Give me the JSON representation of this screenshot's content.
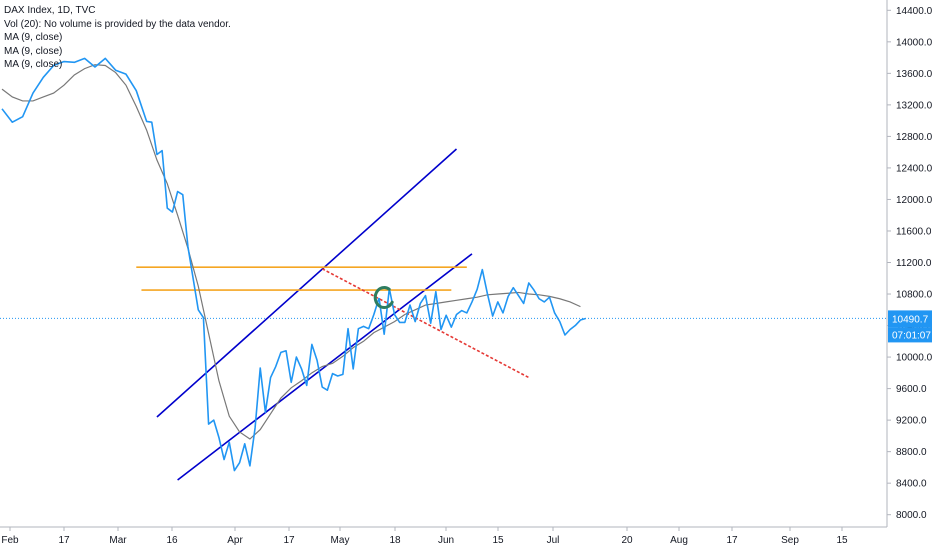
{
  "legend": {
    "title": "DAX Index, 1D, TVC",
    "volume": "Vol (20): No volume is provided by the data vendor.",
    "ma1": "MA (9, close)",
    "ma2": "MA (9, close)",
    "ma3": "MA (9, close)"
  },
  "price_label": {
    "price": "10490.7",
    "countdown": "07:01:07"
  },
  "colors": {
    "price_line": "#2196f3",
    "ma_line": "#787878",
    "channel_line": "#0000cc",
    "resistance_line": "#f5a623",
    "down_line": "#e53935",
    "marker": "#2e7d60",
    "price_label_bg": "#2196f3"
  },
  "chart_data": {
    "type": "line",
    "title": "DAX Index, 1D, TVC",
    "x_axis_ticks": [
      "Feb",
      "17",
      "Mar",
      "16",
      "Apr",
      "17",
      "May",
      "18",
      "Jun",
      "15",
      "Jul",
      "20",
      "Aug",
      "17",
      "Sep",
      "15"
    ],
    "y_axis_ticks": [
      14400,
      14000,
      13600,
      13200,
      12800,
      12400,
      12000,
      11600,
      11200,
      10800,
      10400,
      10000,
      9600,
      9200,
      8800,
      8400,
      8000
    ],
    "ylim": [
      7920,
      14480
    ],
    "x_range": [
      0,
      170
    ],
    "current_price": 10490.7,
    "grid": false,
    "series": [
      {
        "kind": "price",
        "x": [
          0,
          2,
          4,
          6,
          8,
          10,
          12,
          14,
          16,
          18,
          20,
          22,
          24,
          26,
          28,
          29,
          30,
          31,
          32,
          33,
          34,
          35,
          36,
          37,
          38,
          39,
          40,
          41,
          42,
          43,
          44,
          45,
          46,
          47,
          48,
          49,
          50,
          51,
          52,
          53,
          54,
          55,
          56,
          57,
          58,
          59,
          60,
          61,
          62,
          63,
          64,
          65,
          66,
          67,
          68,
          69,
          70,
          71,
          72,
          73
        ],
        "y": [
          13150,
          12980,
          13050,
          13350,
          13550,
          13700,
          13750,
          13740,
          13790,
          13680,
          13790,
          13640,
          13590,
          13380,
          12990,
          12980,
          12570,
          12620,
          11890,
          11840,
          12100,
          12060,
          11400,
          11000,
          10600,
          10500,
          9150,
          9200,
          8980,
          8700,
          8920,
          8560,
          8660,
          8900,
          8620,
          9100,
          9860,
          9300,
          9740,
          9880,
          10060,
          10080,
          9680,
          10000,
          9850,
          9640,
          10160,
          9960,
          9620,
          9580,
          9790,
          9760,
          9780,
          10360,
          9850,
          10360,
          10390,
          10360,
          10540,
          10750
        ]
      },
      {
        "kind": "price-continued",
        "x": [
          73,
          74,
          75,
          76,
          77,
          78,
          79,
          80,
          81,
          82,
          83,
          84,
          85,
          86,
          87,
          88,
          89,
          90,
          91,
          92,
          93,
          94
        ],
        "y": [
          10750,
          10290,
          10870,
          10540,
          10440,
          10440,
          10660,
          10450,
          10680,
          10780,
          10430,
          10830,
          10350,
          10530,
          10380,
          10540,
          10590,
          10560,
          10700,
          10860,
          11110,
          10800
        ],
        "note": "continuation segment"
      },
      {
        "kind": "price-late",
        "x": [
          94,
          95,
          96,
          97,
          98,
          99,
          100,
          101,
          102,
          103,
          104,
          105,
          106,
          107,
          108,
          109,
          110,
          111,
          112,
          113
        ],
        "y": [
          10800,
          10520,
          10700,
          10560,
          10770,
          10880,
          10780,
          10680,
          10940,
          10850,
          10740,
          10700,
          10760,
          10560,
          10450,
          10280,
          10350,
          10400,
          10470,
          10490
        ],
        "note": "late segment"
      }
    ],
    "moving_average": {
      "name": "MA (9, close)",
      "x": [
        0,
        2,
        4,
        6,
        8,
        10,
        12,
        14,
        16,
        18,
        20,
        22,
        24,
        26,
        28,
        30,
        32,
        34,
        36,
        38,
        40,
        42,
        44,
        46,
        48,
        50,
        52,
        54,
        56,
        58,
        60,
        62,
        64,
        66,
        68,
        70,
        72,
        74,
        76,
        78,
        80,
        82,
        84,
        86,
        88,
        90,
        92,
        94,
        96,
        98,
        100,
        102,
        104,
        106,
        108,
        110,
        112
      ],
      "y": [
        13400,
        13300,
        13250,
        13250,
        13300,
        13350,
        13450,
        13580,
        13660,
        13710,
        13700,
        13610,
        13450,
        13180,
        12880,
        12500,
        12200,
        11800,
        11380,
        10900,
        10300,
        9700,
        9250,
        9050,
        8960,
        9080,
        9280,
        9480,
        9610,
        9700,
        9800,
        9880,
        9920,
        10010,
        10120,
        10200,
        10310,
        10380,
        10450,
        10540,
        10600,
        10660,
        10680,
        10700,
        10720,
        10740,
        10760,
        10790,
        10800,
        10810,
        10820,
        10800,
        10790,
        10770,
        10740,
        10700,
        10640
      ]
    },
    "annotations": [
      {
        "kind": "channel-upper",
        "x": [
          30,
          88
        ],
        "y": [
          9240,
          12640
        ]
      },
      {
        "kind": "channel-lower",
        "x": [
          34,
          91
        ],
        "y": [
          8440,
          11310
        ]
      },
      {
        "kind": "horizontal",
        "x": [
          26,
          90
        ],
        "y": [
          11140,
          11140
        ]
      },
      {
        "kind": "horizontal",
        "x": [
          27,
          87
        ],
        "y": [
          10850,
          10850
        ]
      },
      {
        "kind": "descending",
        "x": [
          62,
          102
        ],
        "y": [
          11120,
          9740
        ]
      },
      {
        "kind": "marker-circle",
        "x": [
          74
        ],
        "y": [
          10760
        ]
      }
    ]
  }
}
